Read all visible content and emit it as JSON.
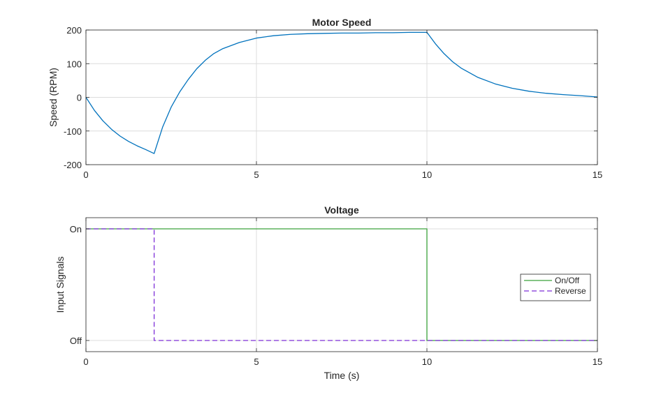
{
  "chart_data": [
    {
      "type": "line",
      "title": "Motor Speed",
      "xlabel": "",
      "ylabel": "Speed (RPM)",
      "xlim": [
        0,
        15
      ],
      "ylim": [
        -200,
        200
      ],
      "xticks": [
        0,
        5,
        10,
        15
      ],
      "yticks": [
        -200,
        -100,
        0,
        100,
        200
      ],
      "grid": true,
      "series": [
        {
          "color": "#0072BD",
          "x": [
            0,
            0.25,
            0.5,
            0.75,
            1.0,
            1.25,
            1.5,
            1.75,
            2.0,
            2.25,
            2.5,
            2.75,
            3.0,
            3.25,
            3.5,
            3.75,
            4.0,
            4.5,
            5.0,
            5.5,
            6.0,
            6.5,
            7.0,
            7.5,
            8.0,
            8.5,
            9.0,
            9.5,
            10.0,
            10.25,
            10.5,
            10.75,
            11.0,
            11.5,
            12.0,
            12.5,
            13.0,
            13.5,
            14.0,
            14.5,
            15.0
          ],
          "values": [
            0,
            -39,
            -70,
            -95,
            -115,
            -131,
            -144,
            -155,
            -167,
            -88,
            -29,
            16,
            53,
            85,
            110,
            130,
            144,
            163,
            176,
            183,
            187,
            189,
            190,
            191,
            191,
            192,
            192,
            193,
            193,
            159,
            130,
            106,
            87,
            59,
            40,
            27,
            18,
            12,
            8,
            5,
            1
          ]
        }
      ]
    },
    {
      "type": "line",
      "title": "Voltage",
      "xlabel": "Time (s)",
      "ylabel": "Input Signals",
      "xlim": [
        0,
        15
      ],
      "ylim": [
        -0.1,
        1.1
      ],
      "xticks": [
        0,
        5,
        10,
        15
      ],
      "yticks": [
        0,
        1
      ],
      "yticklabels": [
        "Off",
        "On"
      ],
      "grid": true,
      "legend": "right",
      "series": [
        {
          "name": "On/Off",
          "color": "#3aa23a",
          "dash": "solid",
          "x": [
            0,
            10,
            10,
            15
          ],
          "values": [
            1,
            1,
            0,
            0
          ]
        },
        {
          "name": "Reverse",
          "color": "#7e2fd8",
          "dash": "dashed",
          "x": [
            0,
            2,
            2,
            15
          ],
          "values": [
            1,
            1,
            0,
            0
          ]
        }
      ]
    }
  ]
}
